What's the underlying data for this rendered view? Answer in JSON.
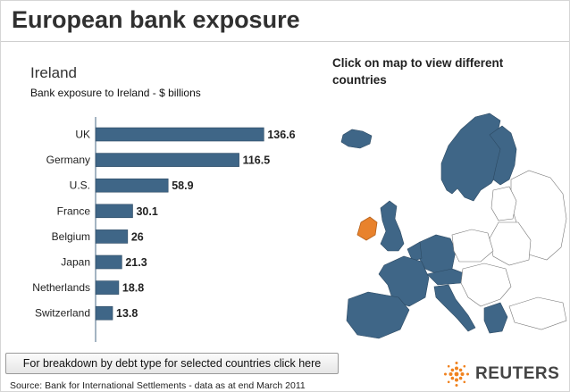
{
  "header": {
    "title": "European bank exposure"
  },
  "panel": {
    "country": "Ireland",
    "subtitle": "Bank exposure to Ireland - $ billions"
  },
  "map": {
    "prompt": "Click on map to view different countries",
    "selected_color": "#e8822c",
    "exposed_color": "#3f6687",
    "other_color": "#ffffff"
  },
  "chart_data": {
    "type": "bar",
    "orientation": "horizontal",
    "categories": [
      "UK",
      "Germany",
      "U.S.",
      "France",
      "Belgium",
      "Japan",
      "Netherlands",
      "Switzerland"
    ],
    "values": [
      136.6,
      116.5,
      58.9,
      30.1,
      26,
      21.3,
      18.8,
      13.8
    ],
    "data_labels": [
      "136.6",
      "116.5",
      "58.9",
      "30.1",
      "26",
      "21.3",
      "18.8",
      "13.8"
    ],
    "bar_color": "#3f6687",
    "xlim": [
      0,
      140
    ],
    "grid": false
  },
  "footer": {
    "button_label": "For breakdown by debt type for selected countries click here",
    "source": "Source: Bank for International Settlements - data as at end March 2011"
  },
  "brand": {
    "name": "REUTERS",
    "logo_icon": "reuters-dot-logo-icon",
    "logo_color": "#f0821e"
  }
}
